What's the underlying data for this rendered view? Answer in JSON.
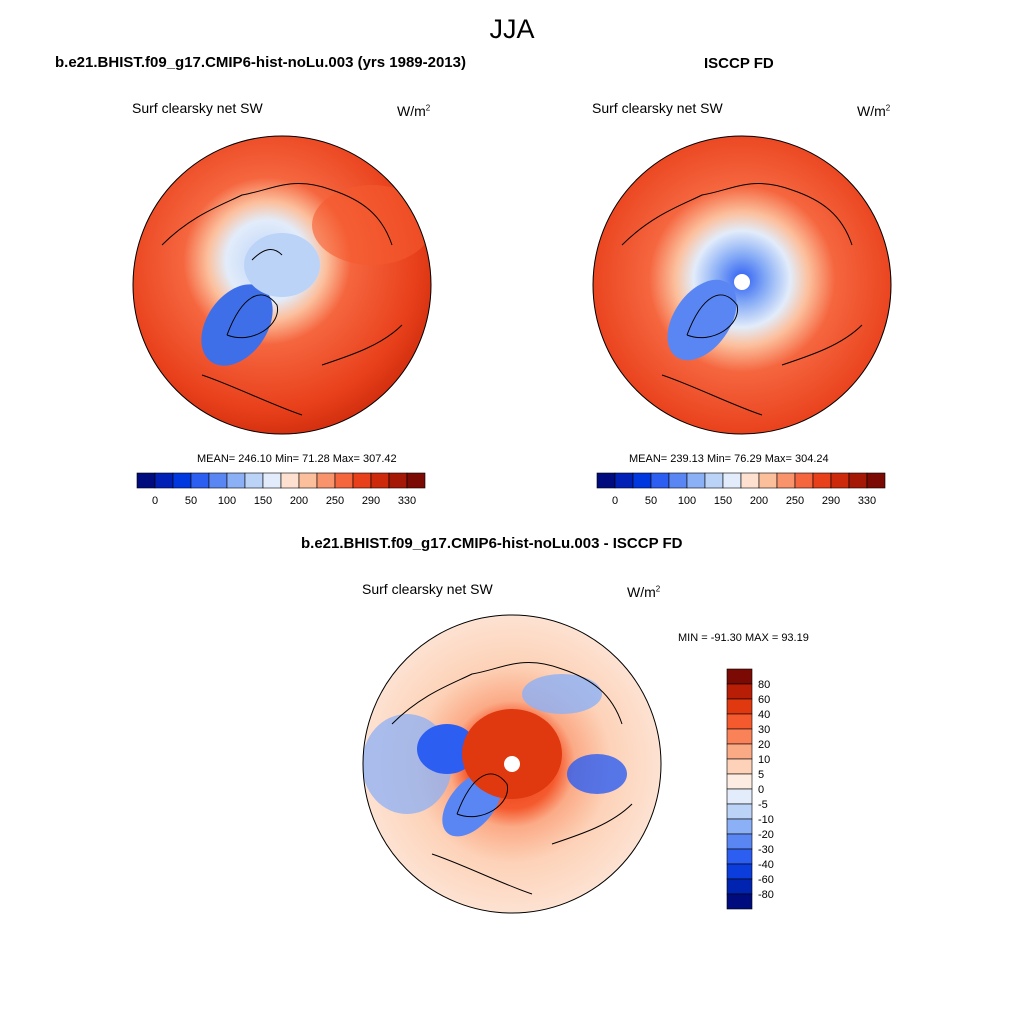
{
  "figure_title": "JJA",
  "panels": [
    {
      "title": "b.e21.BHIST.f09_g17.CMIP6-hist-noLu.003 (yrs 1989-2013)",
      "variable": "Surf clearsky net SW",
      "units": "W/m",
      "units_sup": "2",
      "stats": "MEAN= 246.10  Min=  71.28  Max= 307.42",
      "polar_hole": false
    },
    {
      "title": "ISCCP FD",
      "variable": "Surf clearsky net SW",
      "units": "W/m",
      "units_sup": "2",
      "stats": "MEAN= 239.13  Min=  76.29  Max= 304.24",
      "polar_hole": true
    },
    {
      "title": "b.e21.BHIST.f09_g17.CMIP6-hist-noLu.003 - ISCCP FD",
      "variable": "Surf clearsky net SW",
      "units": "W/m",
      "units_sup": "2",
      "stats": "MIN = -91.30 MAX =  93.19",
      "polar_hole": true
    }
  ],
  "colorbar_abs": {
    "labels": [
      "0",
      "50",
      "100",
      "150",
      "200",
      "250",
      "290",
      "330"
    ],
    "colors": [
      "#000c7d",
      "#0020b6",
      "#0038e0",
      "#2c5ef2",
      "#5a86f4",
      "#8cb0f6",
      "#bcd3f8",
      "#e2ecfa",
      "#fde0cf",
      "#fcbf9c",
      "#f9936b",
      "#f5663f",
      "#e8401b",
      "#cc2a0b",
      "#a51806",
      "#7a0a03"
    ]
  },
  "colorbar_diff": {
    "labels": [
      "80",
      "60",
      "40",
      "30",
      "20",
      "10",
      "5",
      "0",
      "-5",
      "-10",
      "-20",
      "-30",
      "-40",
      "-60",
      "-80"
    ],
    "colors": [
      "#7a0a03",
      "#b81d06",
      "#e0380f",
      "#f55a2e",
      "#f98258",
      "#fbaa86",
      "#fdd2b8",
      "#fdece2",
      "#e2ecfa",
      "#bcd3f8",
      "#8cb0f6",
      "#5a86f4",
      "#2c5ef2",
      "#0a3ddb",
      "#0024b0",
      "#000c7d"
    ]
  }
}
